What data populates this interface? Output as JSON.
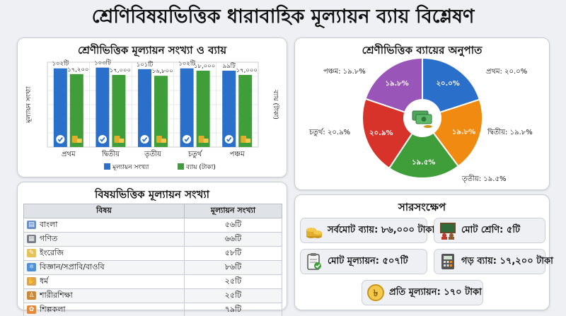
{
  "title": "শ্রেণিবিষয়ভিত্তিক ধারাবাহিক মূল্যায়ন ব্যায় বিশ্লেষণ",
  "colors": {
    "blue": "#2a6fc9",
    "green": "#3f9e3a",
    "orange": "#f08a10",
    "red": "#d8332a",
    "purple": "#9a55b8",
    "teal": "#2f9a80"
  },
  "chart_data": [
    {
      "type": "bar",
      "title": "শ্রেণীভিত্তিক মূল্যায়ন সংখ্যা ও ব্যায়",
      "categories": [
        "প্রথম",
        "দ্বিতীয়",
        "তৃতীয়",
        "চতুর্থ",
        "পঞ্চম"
      ],
      "ylabel": "মূল্যায়ন সংখ্যা",
      "y2label": "ব্যায় (টাকা)",
      "series": [
        {
          "name": "মূল্যায়ন সংখ্যা",
          "color": "#2a6fc9",
          "values": [
            102,
            103,
            101,
            102,
            99
          ],
          "labels": [
            "১০২টি",
            "১০৩টি",
            "১০১টি",
            "১০২টি",
            "৯৯টি"
          ]
        },
        {
          "name": "ব্যায় (টাকা)",
          "color": "#3f9e3a",
          "values": [
            17200,
            17000,
            16800,
            18000,
            17000
          ],
          "labels": [
            "১৭,২০০",
            "১৭,০০০",
            "১৬,৮০০",
            "১৮,০০০",
            "১৭,০০০"
          ]
        }
      ],
      "grid": true,
      "legend": "bottom"
    },
    {
      "type": "pie",
      "title": "শ্রেণীভিত্তিক ব্যায়ের অনুপাত",
      "slices": [
        {
          "label": "প্রথম: ২০.০%",
          "inner": "২০.০%",
          "value": 20.0,
          "color": "#2a6fc9"
        },
        {
          "label": "দ্বিতীয়: ১৯.৮%",
          "inner": "১৯.৮%",
          "value": 19.8,
          "color": "#f08a10"
        },
        {
          "label": "তৃতীয়: ১৯.৫%",
          "inner": "১৯.৫%",
          "value": 19.5,
          "color": "#3f9e3a"
        },
        {
          "label": "চতুর্থ: ২০.৯%",
          "inner": "২০.৯%",
          "value": 20.9,
          "color": "#d8332a"
        },
        {
          "label": "পঞ্চম: ১৯.৮%",
          "inner": "১৯.৮%",
          "value": 19.8,
          "color": "#9a55b8"
        }
      ]
    }
  ],
  "subject_table": {
    "title": "বিষয়ভিত্তিক মূল্যায়ন সংখ্যা",
    "headers": [
      "বিষয়",
      "মূল্যায়ন সংখ্যা"
    ],
    "rows": [
      {
        "subject": "বাংলা",
        "count": "৫৬টি",
        "icon": "book-icon"
      },
      {
        "subject": "গণিত",
        "count": "৬৬টি",
        "icon": "calculator-icon"
      },
      {
        "subject": "ইংরেজি",
        "count": "৫৮টি",
        "icon": "notepad-icon"
      },
      {
        "subject": "বিজ্ঞান/সপ্রাবি/বাওবি",
        "count": "৮৬টি",
        "icon": "atom-icon"
      },
      {
        "subject": "ধর্ম",
        "count": "২৫টি",
        "icon": "praying-hands-icon"
      },
      {
        "subject": "শারীরশিক্ষা",
        "count": "২৫টি",
        "icon": "exercise-icon"
      },
      {
        "subject": "শিল্পকলা",
        "count": "৭৯টি",
        "icon": "palette-icon"
      }
    ]
  },
  "summary": {
    "title": "সারসংক্ষেপ",
    "total_cost": "সর্বমোট ব্যায়: ৮৬,০০০ টাকা",
    "total_classes": "মোট শ্রেণি: ৫টি",
    "total_assessments": "মোট মূল্যায়ন: ৫০৭টি",
    "avg_cost": "গড় ব্যায়: ১৭,২০০ টাকা",
    "per_assessment": "প্রতি মূল্যায়ন: ১৭০ টাকা"
  }
}
